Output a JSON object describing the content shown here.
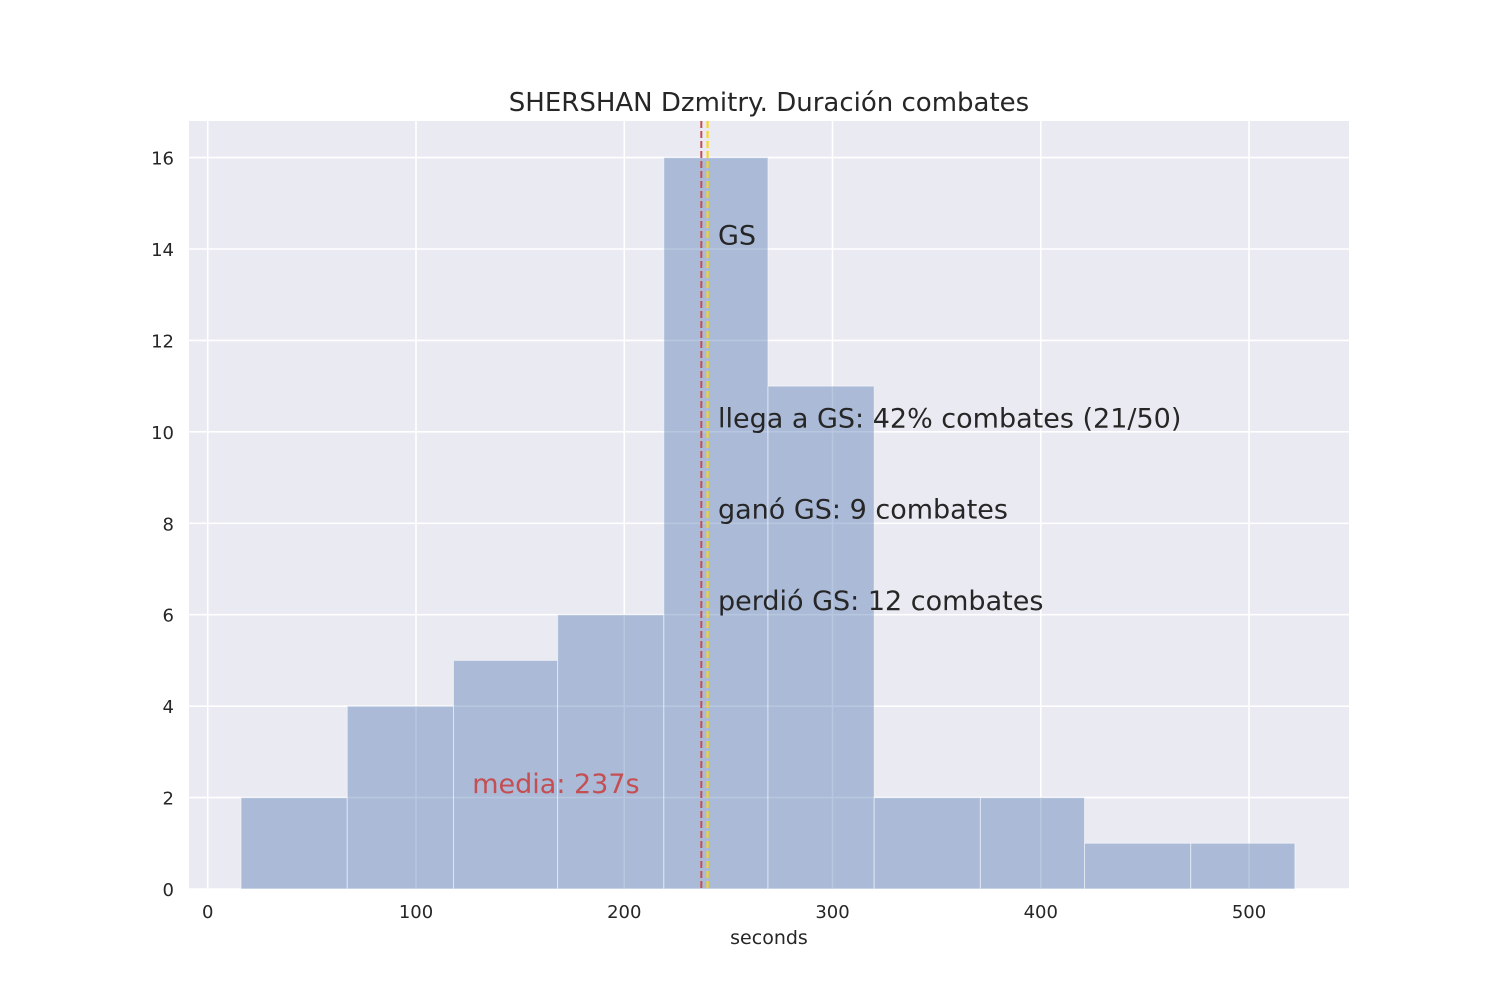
{
  "chart_data": {
    "type": "bar",
    "title": "SHERSHAN Dzmitry. Duración combates",
    "xlabel": "seconds",
    "ylabel": "",
    "xlim": [
      -9,
      548
    ],
    "ylim": [
      0,
      16.8
    ],
    "xticks": [
      0,
      100,
      200,
      300,
      400,
      500
    ],
    "yticks": [
      0,
      2,
      4,
      6,
      8,
      10,
      12,
      14,
      16
    ],
    "grid": true,
    "bins": [
      {
        "start": 16,
        "end": 67,
        "count": 2
      },
      {
        "start": 67,
        "end": 118,
        "count": 4
      },
      {
        "start": 118,
        "end": 168,
        "count": 5
      },
      {
        "start": 168,
        "end": 219,
        "count": 6
      },
      {
        "start": 219,
        "end": 269,
        "count": 16
      },
      {
        "start": 269,
        "end": 320,
        "count": 11
      },
      {
        "start": 320,
        "end": 371,
        "count": 2
      },
      {
        "start": 371,
        "end": 421,
        "count": 2
      },
      {
        "start": 421,
        "end": 472,
        "count": 1
      },
      {
        "start": 472,
        "end": 522,
        "count": 1
      }
    ],
    "reference_lines": [
      {
        "x": 237,
        "color": "#c44e52",
        "style": "dashed"
      },
      {
        "x": 240,
        "color": "#ffd700",
        "style": "dashed"
      }
    ],
    "annotations": {
      "gs": {
        "text": "GS",
        "x": 245,
        "y": 14.1
      },
      "reached": {
        "text": "llega a GS: 42% combates (21/50)",
        "x": 245,
        "y": 10.1
      },
      "won": {
        "text": "ganó GS: 9 combates",
        "x": 245,
        "y": 8.1
      },
      "lost": {
        "text": "perdió GS: 12 combates",
        "x": 245,
        "y": 6.1
      },
      "mean": {
        "text": "media: 237s",
        "x": 127,
        "y": 2.1,
        "color": "#c44e52"
      }
    },
    "colors": {
      "bar": "#4c72b0",
      "background": "#eaeaf2",
      "grid": "#ffffff"
    }
  }
}
